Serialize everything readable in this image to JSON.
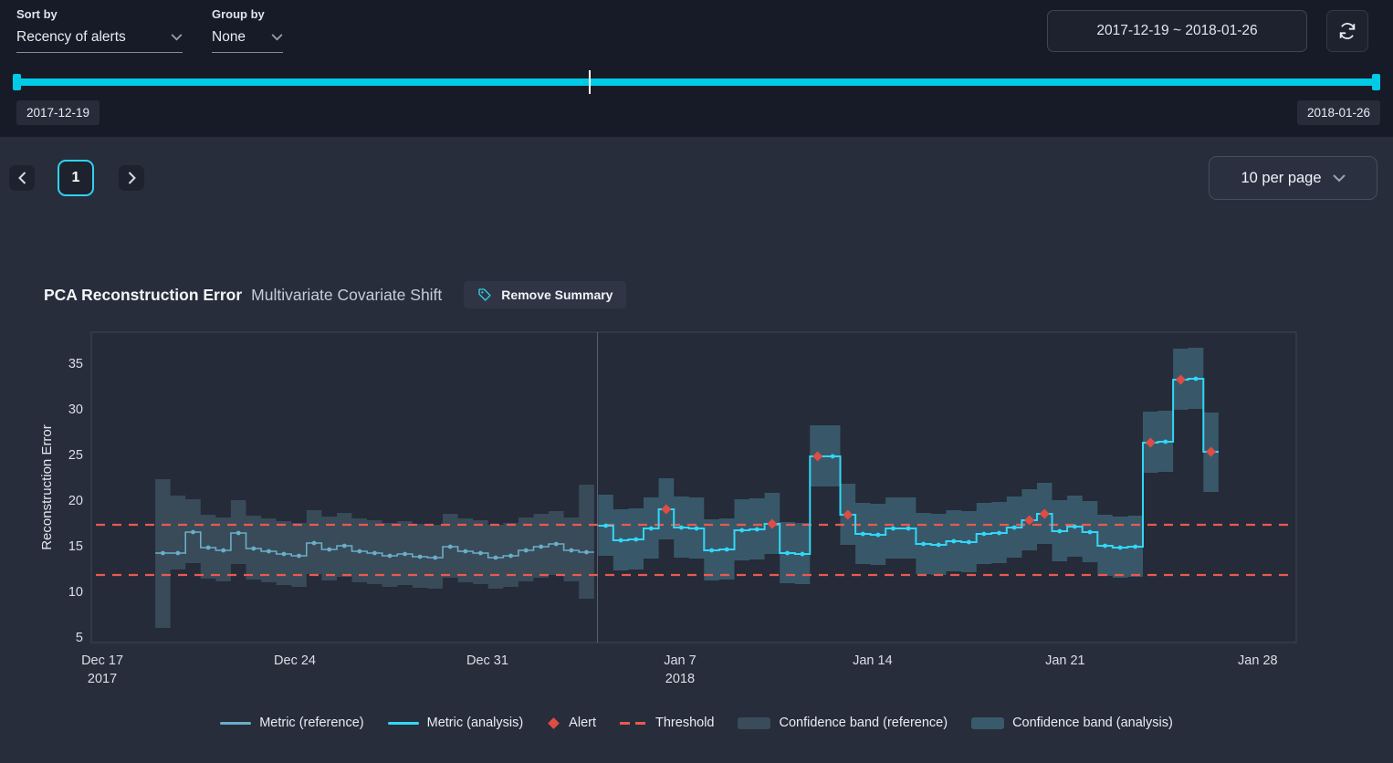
{
  "toolbar": {
    "sort_by_label": "Sort by",
    "sort_by_value": "Recency of alerts",
    "group_by_label": "Group by",
    "group_by_value": "None",
    "date_range_value": "2017-12-19 ~ 2018-01-26",
    "range_start_chip": "2017-12-19",
    "range_end_chip": "2018-01-26",
    "slider_marker_pos_pct": 42.3
  },
  "pagination": {
    "current_page": "1",
    "per_page_label": "10 per page"
  },
  "chart_header": {
    "title": "PCA Reconstruction Error",
    "subtitle": "Multivariate Covariate Shift",
    "remove_summary_label": "Remove Summary"
  },
  "colors": {
    "accent_cyan": "#00cbe6",
    "metric_reference": "#6aaec8",
    "metric_analysis": "#31d7f7",
    "alert": "#dd4d44",
    "threshold": "#ea5950",
    "band_reference": "rgba(99,141,160,0.32)",
    "band_analysis": "rgba(84,158,180,0.40)",
    "divider": "#596171",
    "plot_border": "#3e4654",
    "plot_bg": "#252b38",
    "tick_text": "#dbdfe7"
  },
  "chart_data": {
    "type": "line",
    "title": "PCA Reconstruction Error",
    "ylabel": "Reconstruction Error",
    "x_unit": "days since 2017-12-17",
    "xlim": [
      -0.4,
      43.4
    ],
    "ylim": [
      4.4,
      38.4
    ],
    "yticks": [
      5,
      10,
      15,
      20,
      25,
      30,
      35
    ],
    "xticks": [
      {
        "x": 0,
        "label": "Dec 17",
        "sub": "2017"
      },
      {
        "x": 7,
        "label": "Dec 24"
      },
      {
        "x": 14,
        "label": "Dec 31"
      },
      {
        "x": 21,
        "label": "Jan 7",
        "sub": "2018"
      },
      {
        "x": 28,
        "label": "Jan 14"
      },
      {
        "x": 35,
        "label": "Jan 21"
      },
      {
        "x": 42,
        "label": "Jan 28"
      }
    ],
    "divider_x": 18,
    "thresholds": [
      17.3,
      11.8
    ],
    "series": [
      {
        "name": "Metric (reference)",
        "x": [
          2.2,
          2.75,
          3.3,
          3.85,
          4.4,
          4.95,
          5.5,
          6.05,
          6.6,
          7.15,
          7.7,
          8.25,
          8.8,
          9.35,
          9.9,
          10.45,
          11,
          11.55,
          12.1,
          12.65,
          13.2,
          13.75,
          14.3,
          14.85,
          15.4,
          15.95,
          16.5,
          17.05,
          17.6
        ],
        "y": [
          14.2,
          14.2,
          16.5,
          14.8,
          14.5,
          16.4,
          14.7,
          14.4,
          14.1,
          13.9,
          15.3,
          14.6,
          15,
          14.4,
          14.2,
          13.9,
          14.1,
          13.8,
          13.7,
          14.9,
          14.4,
          14.2,
          13.7,
          13.9,
          14.5,
          14.9,
          15.2,
          14.5,
          14.3
        ],
        "band_low": [
          6,
          12.4,
          13.1,
          11.4,
          11.1,
          13,
          11.3,
          11,
          10.7,
          10.5,
          11.9,
          11.2,
          11.6,
          11,
          10.8,
          10.5,
          10.7,
          10.4,
          10.3,
          11.5,
          11,
          10.8,
          10.3,
          10.5,
          11.1,
          11.5,
          11.8,
          11.1,
          9.2
        ],
        "band_high": [
          22.3,
          20.5,
          20.1,
          18.4,
          18.1,
          20,
          18.3,
          18,
          17.7,
          17.5,
          18.9,
          18.2,
          18.6,
          18,
          17.8,
          17.5,
          17.7,
          17.4,
          17.3,
          18.5,
          18,
          17.8,
          17.3,
          17.5,
          18.1,
          18.5,
          18.8,
          18.1,
          21.7
        ]
      },
      {
        "name": "Metric (analysis)",
        "x": [
          18.3,
          18.85,
          19.4,
          19.95,
          20.5,
          21.05,
          21.6,
          22.15,
          22.7,
          23.25,
          23.8,
          24.35,
          24.9,
          25.45,
          26,
          26.55,
          27.1,
          27.65,
          28.2,
          28.75,
          29.3,
          29.85,
          30.4,
          30.95,
          31.5,
          32.05,
          32.6,
          33.15,
          33.7,
          34.25,
          34.8,
          35.35,
          35.9,
          36.45,
          37,
          37.55,
          38.1,
          38.65,
          39.2,
          39.75,
          40.3
        ],
        "y": [
          17.2,
          15.6,
          15.7,
          16.9,
          19,
          17,
          16.9,
          14.5,
          14.6,
          16.7,
          16.8,
          17.4,
          14.2,
          14.1,
          24.8,
          24.8,
          18.4,
          16.3,
          16.2,
          16.9,
          16.9,
          15.2,
          15.1,
          15.5,
          15.4,
          16.3,
          16.4,
          17,
          17.8,
          18.5,
          16.6,
          17.1,
          16.5,
          15,
          14.8,
          14.9,
          26.3,
          26.4,
          33.2,
          33.3,
          25.3
        ],
        "band_low": [
          13.9,
          12.3,
          12.4,
          13.6,
          15.7,
          13.7,
          13.6,
          11.2,
          11.3,
          13.4,
          13.5,
          14.1,
          10.9,
          10.8,
          21.5,
          21.5,
          15.1,
          13,
          12.9,
          13.6,
          13.6,
          11.9,
          11.8,
          12.2,
          12.1,
          13,
          13.1,
          13.7,
          14.5,
          15.2,
          13.3,
          13.8,
          13.2,
          11.7,
          11.5,
          11.6,
          23,
          23.1,
          29.9,
          30,
          20.9
        ],
        "band_high": [
          20.6,
          19,
          19.1,
          20.3,
          22.4,
          20.4,
          20.3,
          17.9,
          18,
          20.1,
          20.2,
          20.8,
          17.6,
          17.5,
          28.2,
          28.2,
          21.8,
          19.7,
          19.6,
          20.3,
          20.3,
          18.6,
          18.5,
          18.9,
          18.8,
          19.7,
          19.8,
          20.4,
          21.2,
          21.9,
          20,
          20.5,
          19.9,
          18.4,
          18.2,
          18.3,
          29.7,
          29.8,
          36.6,
          36.7,
          29.6
        ]
      }
    ],
    "alerts": {
      "x": [
        20.5,
        24.35,
        26,
        27.1,
        33.7,
        34.25,
        38.1,
        39.2,
        40.3
      ],
      "y": [
        19,
        17.4,
        24.8,
        18.4,
        17.8,
        18.5,
        26.3,
        33.2,
        25.3
      ]
    },
    "legend": [
      {
        "label": "Metric (reference)"
      },
      {
        "label": "Metric (analysis)"
      },
      {
        "label": "Alert"
      },
      {
        "label": "Threshold"
      },
      {
        "label": "Confidence band (reference)"
      },
      {
        "label": "Confidence band (analysis)"
      }
    ],
    "legend_position": "bottom-center",
    "grid": false
  }
}
